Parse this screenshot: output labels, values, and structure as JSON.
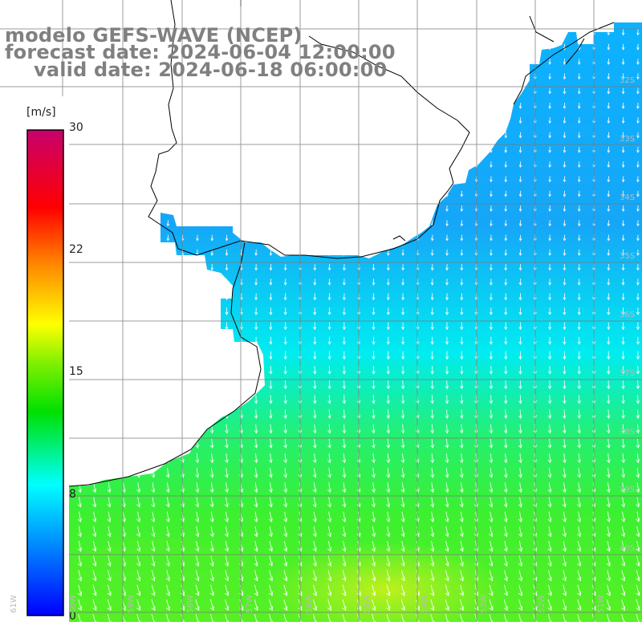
{
  "header": {
    "model": "modelo GEFS-WAVE (NCEP)",
    "forecast": "forecast date: 2024-06-04 12:00:00",
    "valid": "valid date: 2024-06-18 06:00:00"
  },
  "colorbar": {
    "unit": "[m/s]",
    "ticks": [
      "30",
      "22",
      "15",
      "8",
      "0"
    ],
    "tick_values": [
      30,
      22,
      15,
      8,
      0
    ],
    "range": [
      0,
      30
    ],
    "colors": [
      "#0000ff",
      "#00ffff",
      "#00e000",
      "#ffff00",
      "#ff8000",
      "#ff0000",
      "#c8005a"
    ]
  },
  "map": {
    "type": "wind-speed field with direction arrows",
    "lat_labels": [
      "32S",
      "33S",
      "34S",
      "35S",
      "36S",
      "37S",
      "38S",
      "39S",
      "40S"
    ],
    "lon_labels": [
      "61W",
      "60W",
      "59W",
      "58W",
      "57W",
      "56W",
      "55W",
      "54W",
      "53W",
      "52W",
      "51W"
    ],
    "ocean_colors": {
      "north": "#1f86f5",
      "mid": "#00e8ff",
      "south": "#3cf030",
      "max": "#aaf020"
    }
  }
}
